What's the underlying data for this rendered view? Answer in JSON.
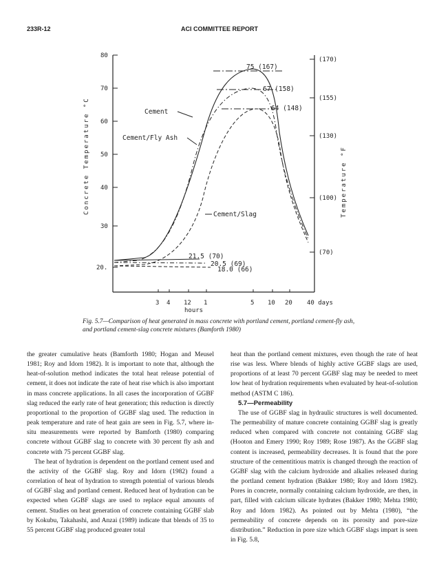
{
  "header": {
    "page_id": "233R-12",
    "running_title": "ACI COMMITTEE REPORT"
  },
  "figure": {
    "caption": "Fig. 5.7—Comparison of heat generated in mass concrete with portland cement, portland cement-fly ash, and portland cement-slag concrete mixtures (Bamforth 1980)"
  },
  "chart_data": {
    "type": "line",
    "ylabel": "Concrete Temperature °C",
    "ylabel_right": "Temperature °F",
    "y_ticks": [
      "80",
      "70",
      "60",
      "50",
      "40",
      "30",
      "20."
    ],
    "ylim": [
      20,
      80
    ],
    "y_ticks_right": [
      "(170)",
      "(155)",
      "(130)",
      "(100)",
      "(70)"
    ],
    "x_tick_labels": [
      "3",
      "4",
      "12",
      "1",
      "5",
      "10",
      "20",
      "40 days"
    ],
    "x_unit_label": "hours",
    "series": [
      {
        "name": "Cement",
        "style": "solid",
        "start_temp": 21.5,
        "peak_temp": 75,
        "end_temp": 28
      },
      {
        "name": "Cement/Fly Ash",
        "style": "dash-dot",
        "start_temp": 20.5,
        "peak_temp": 67,
        "end_temp": 29
      },
      {
        "name": "Cement/Slag",
        "style": "dashed",
        "start_temp": 18.0,
        "peak_temp": 64,
        "end_temp": 30
      }
    ],
    "annotations": {
      "cement_peak": "75 (167)",
      "flyash_peak": "67 (158)",
      "slag_peak": "64 (148)",
      "cement_start": "21.5 (70)",
      "flyash_start": "20.5 (69)",
      "slag_start": "18.0 (66)"
    },
    "grid": false,
    "legend": "inline labels"
  },
  "body": {
    "left": [
      "the greater cumulative heats (Bamforth 1980; Hogan and Meusel 1981; Roy and Idorn 1982). It is important to note that, although the heat-of-solution method indicates the total heat release potential of cement, it does not indicate the rate of heat rise which is also important in mass concrete applications. In all cases the incorporation of GGBF slag reduced the early rate of heat generation; this reduction is directly proportional to the proportion of GGBF slag used. The reduction in peak temperature and rate of heat gain are seen in Fig. 5.7, where in-situ measurements were reported by Bamforth (1980) comparing concrete without GGBF slag to concrete with 30 percent fly ash and concrete with 75 percent GGBF slag.",
      "The heat of hydration is dependent on the portland cement used and the activity of the GGBF slag. Roy and Idorn (1982) found a correlation of heat of hydration to strength potential of various blends of GGBF slag and portland cement. Reduced heat of hydration can be expected when GGBF slags are used to replace equal amounts of cement. Studies on heat generation of concrete containing GGBF slab by Kokubu, Takahashi, and Anzai (1989) indicate that blends of 35 to 55 percent GGBF slag produced greater total"
    ],
    "right_intro": "heat than the portland cement mixtures, even though the rate of heat rise was less. Where blends of highly active GGBF slags are used, proportions of at least 70 percent GGBF slag may be needed to meet low heat of hydration requirements when evaluated by heat-of-solution method (ASTM C 186).",
    "section_title": "5.7—Permeability",
    "right_section": "The use of GGBF slag in hydraulic structures is well documented. The permeability of mature concrete containing GGBF slag is greatly reduced when compared with concrete not containing GGBF slag (Hooton and Emery 1990; Roy 1989; Rose 1987). As the GGBF slag content is increased, permeability decreases. It is found that the pore structure of the cementitious matrix is changed through the reaction of GGBF slag with the calcium hydroxide and alkalies released during the portland cement hydration (Bakker 1980; Roy and Idorn 1982). Pores in concrete, normally containing calcium hydroxide, are then, in part, filled with calcium silicate hydrates (Bakker 1980; Mehta 1980; Roy and Idorn 1982). As pointed out by Mehta (1980), “the permeability of concrete depends on its porosity and pore-size distribution.” Reduction in pore size which GGBF slags impart is seen in Fig. 5.8,"
  }
}
